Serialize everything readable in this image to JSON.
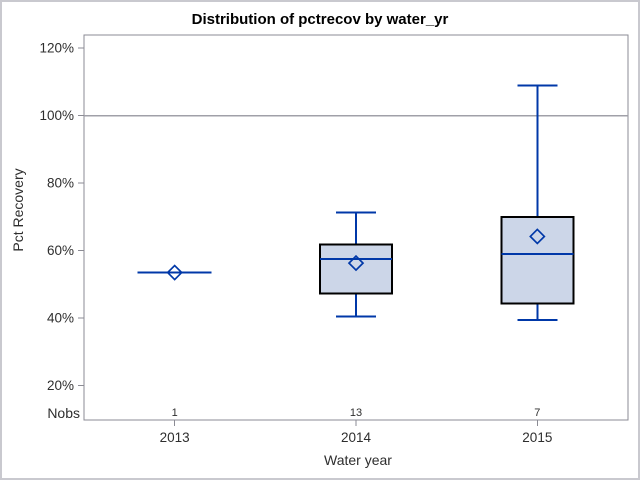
{
  "chart_data": {
    "type": "boxplot",
    "title": "Distribution of pctrecov by water_yr",
    "xlabel": "Water year",
    "ylabel": "Pct Recovery",
    "nobs_label": "Nobs",
    "categories": [
      "2013",
      "2014",
      "2015"
    ],
    "nobs": [
      "1",
      "13",
      "7"
    ],
    "y_ticks": [
      {
        "v": 20,
        "label": "20%"
      },
      {
        "v": 40,
        "label": "40%"
      },
      {
        "v": 60,
        "label": "60%"
      },
      {
        "v": 80,
        "label": "80%"
      },
      {
        "v": 100,
        "label": "100%"
      },
      {
        "v": 120,
        "label": "120%"
      }
    ],
    "ylim": [
      9.8,
      123.9
    ],
    "reference_line": 100,
    "grid": false,
    "legend": "none",
    "boxes": [
      {
        "category": "2013",
        "n": 1,
        "low": 53.5,
        "q1": 53.5,
        "median": 53.5,
        "q3": 53.5,
        "high": 53.5,
        "mean": 53.5
      },
      {
        "category": "2014",
        "n": 13,
        "low": 40.5,
        "q1": 47.3,
        "median": 57.5,
        "q3": 61.8,
        "high": 71.3,
        "mean": 56.3
      },
      {
        "category": "2015",
        "n": 7,
        "low": 39.5,
        "q1": 44.4,
        "median": 59.0,
        "q3": 70.0,
        "high": 109.0,
        "mean": 64.2
      }
    ],
    "colors": {
      "box_fill": "#ccd6e8",
      "box_border": "#000000",
      "blue_line": "#0038a8",
      "frame": "#8b8b94",
      "reference": "#a0a0a8",
      "text": "#2e2e2e",
      "page_border": "#c9c9cf",
      "background": "#ffffff"
    }
  }
}
